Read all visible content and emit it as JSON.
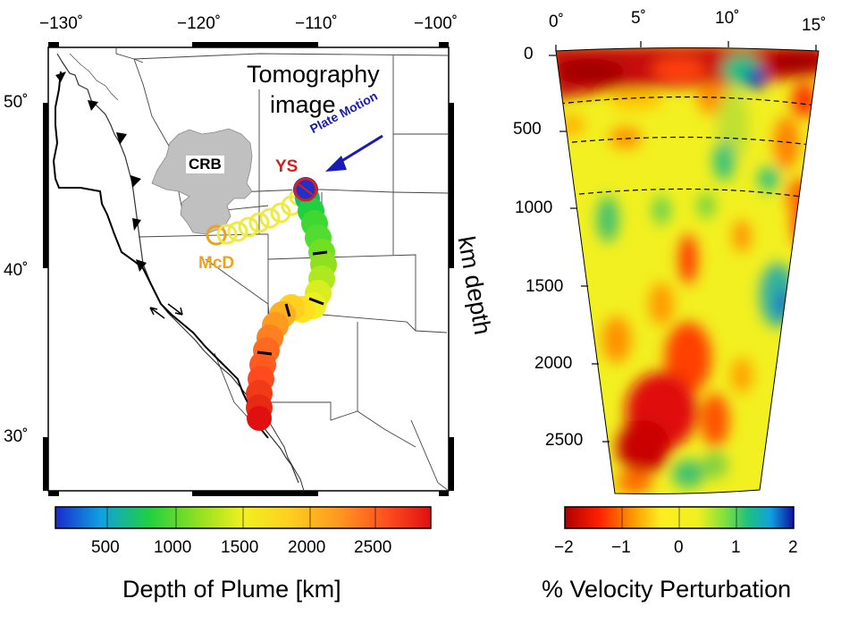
{
  "map": {
    "lon_ticks": [
      "−130˚",
      "−120˚",
      "−110˚",
      "−100˚"
    ],
    "lat_ticks": [
      "50˚",
      "40˚",
      "30˚"
    ],
    "tomography_label_line1": "Tomography",
    "tomography_label_line2": "image",
    "crb_label": "CRB",
    "ys_label": "YS",
    "mcd_label": "McD",
    "plate_motion_label": "Plate Motion",
    "colors": {
      "ys": "#d81e1e",
      "mcd": "#f0a020",
      "plate_motion": "#1a1ab4",
      "crb_fill": "#c0c0c0"
    }
  },
  "plume_colorbar": {
    "ticks": [
      "500",
      "1000",
      "1500",
      "2000",
      "2500"
    ],
    "title": "Depth of Plume [km]"
  },
  "section": {
    "top_ticks": [
      "0˚",
      "5˚",
      "10˚",
      "15˚"
    ],
    "depth_ticks": [
      "0",
      "500",
      "1000",
      "1500",
      "2000",
      "2500"
    ],
    "depth_label": "km depth"
  },
  "velocity_colorbar": {
    "ticks": [
      "−2",
      "−1",
      "0",
      "1",
      "2"
    ],
    "title": "% Velocity Perturbation"
  }
}
